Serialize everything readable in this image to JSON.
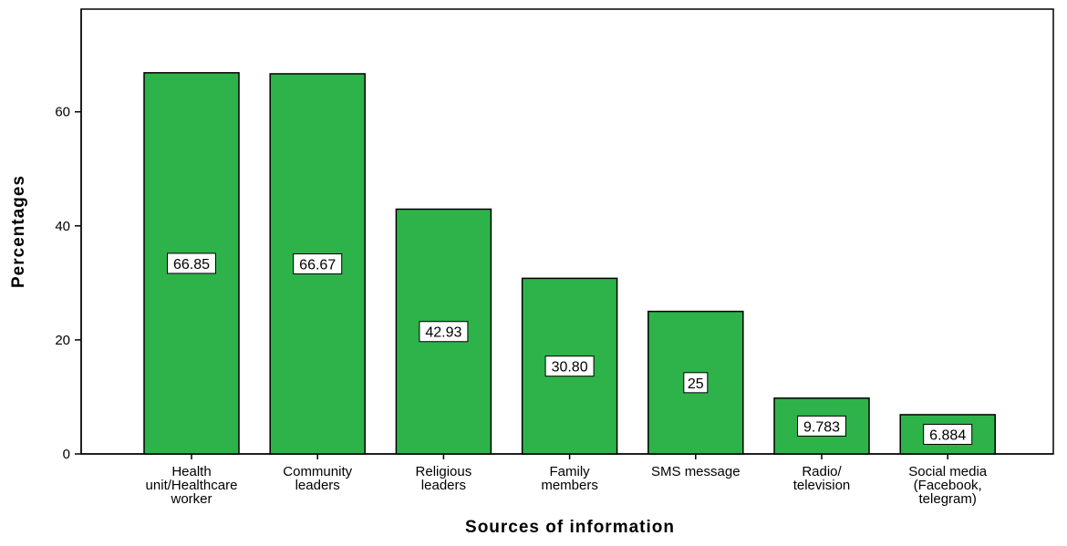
{
  "chart_data": {
    "type": "bar",
    "title": "",
    "xlabel": "Sources of information",
    "ylabel": "Percentages",
    "categories": [
      [
        "Health",
        "unit/Healthcare",
        "worker"
      ],
      [
        "Community",
        "leaders"
      ],
      [
        "Religious",
        "leaders"
      ],
      [
        "Family",
        "members"
      ],
      [
        "SMS message"
      ],
      [
        "Radio/",
        "television"
      ],
      [
        "Social media",
        "(Facebook,",
        "telegram)"
      ]
    ],
    "values": [
      66.85,
      66.67,
      42.93,
      30.8,
      25,
      9.783,
      6.884
    ],
    "data_labels": [
      "66.85",
      "66.67",
      "42.93",
      "30.80",
      "25",
      "9.783",
      "6.884"
    ],
    "yticks": [
      0,
      20,
      40,
      60
    ],
    "ylim": [
      0,
      77.5
    ],
    "grid": false,
    "bar_color": "#2db34a",
    "bar_stroke": "#000000"
  }
}
